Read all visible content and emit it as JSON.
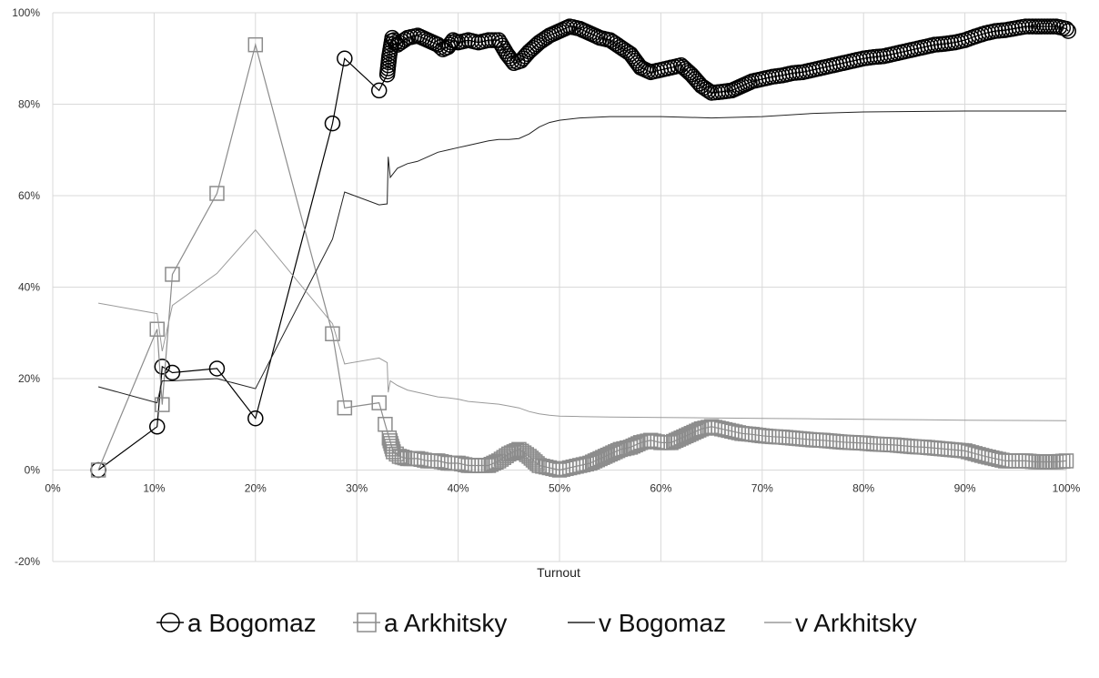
{
  "chart_data": {
    "type": "scatter",
    "title": "",
    "xlabel": "Turnout",
    "ylabel": "",
    "xlim": [
      0,
      100
    ],
    "ylim": [
      -20,
      100
    ],
    "x_ticks": [
      "0%",
      "10%",
      "20%",
      "30%",
      "40%",
      "50%",
      "60%",
      "70%",
      "80%",
      "90%",
      "100%"
    ],
    "y_ticks": [
      "-20%",
      "0%",
      "20%",
      "40%",
      "60%",
      "80%",
      "100%"
    ],
    "x_tick_values": [
      0,
      10,
      20,
      30,
      40,
      50,
      60,
      70,
      80,
      90,
      100
    ],
    "y_tick_values": [
      -20,
      0,
      20,
      40,
      60,
      80,
      100
    ],
    "grid": true,
    "legend_position": "bottom",
    "series": [
      {
        "name": "a Bogomaz",
        "marker": "circle",
        "line": true,
        "color": "#000000",
        "x": [
          4.5,
          10.3,
          10.8,
          11.8,
          16.2,
          20.0,
          27.6,
          28.8,
          32.2,
          33.0,
          33.2,
          33.5,
          34,
          35,
          36,
          37,
          38,
          38.5,
          39,
          39.5,
          40,
          41,
          42,
          43,
          44,
          44.8,
          45.5,
          46.2,
          47,
          48,
          49,
          50,
          51,
          52,
          53,
          54,
          55,
          56,
          57,
          58,
          59,
          60,
          61,
          62,
          63,
          64,
          65,
          66,
          67,
          68,
          69,
          70,
          71,
          72,
          73,
          74,
          75,
          76,
          77,
          78,
          79,
          80,
          81,
          82,
          83,
          84,
          85,
          86,
          87,
          88,
          89,
          90,
          91,
          92,
          93,
          94,
          95,
          96,
          97,
          99,
          100,
          100.2
        ],
        "y": [
          0,
          9.5,
          22.6,
          21.3,
          22.2,
          11.3,
          75.8,
          90.0,
          83.0,
          86.5,
          90.5,
          94.5,
          93,
          94.5,
          95,
          94,
          93,
          92,
          92.5,
          94,
          93.5,
          94,
          93.5,
          94,
          94,
          91,
          89,
          89.5,
          91.5,
          93.5,
          95,
          96,
          97,
          96.5,
          95.5,
          94.5,
          94,
          92.5,
          91,
          88,
          87,
          87.5,
          88,
          88.5,
          86.5,
          84,
          82.5,
          82.7,
          83,
          84,
          85,
          85.5,
          86,
          86.3,
          86.8,
          87,
          87.5,
          88,
          88.5,
          89,
          89.5,
          90,
          90.3,
          90.5,
          91,
          91.5,
          92,
          92.5,
          93,
          93.2,
          93.5,
          94,
          94.8,
          95.5,
          96,
          96.2,
          96.6,
          97,
          97,
          97,
          96.5,
          96
        ]
      },
      {
        "name": "a Arkhitsky",
        "marker": "square",
        "line": true,
        "color": "#8c8c8c",
        "x": [
          4.5,
          10.3,
          10.8,
          11.8,
          16.2,
          20.0,
          27.6,
          28.8,
          32.2,
          32.8,
          33.2,
          33.6,
          34.2,
          35,
          36,
          37,
          38,
          39,
          40,
          41,
          42,
          43,
          44,
          45,
          46,
          47,
          48,
          49,
          50,
          51,
          52,
          53,
          54,
          55,
          56,
          57,
          58,
          59,
          60,
          61,
          62,
          63,
          64,
          65,
          66,
          67,
          68,
          69,
          70,
          71,
          72,
          73,
          74,
          75,
          76,
          77,
          78,
          79,
          80,
          81,
          82,
          83,
          84,
          85,
          86,
          87,
          88,
          89,
          90,
          91,
          92,
          93,
          94,
          95,
          96,
          97,
          99,
          100
        ],
        "y": [
          0,
          30.8,
          14.3,
          42.8,
          60.5,
          93.0,
          29.8,
          13.6,
          14.7,
          10.0,
          7.0,
          4.0,
          3.0,
          2.5,
          2.5,
          2.0,
          2.0,
          1.5,
          1.5,
          1.0,
          1.0,
          1.0,
          2.0,
          3.5,
          4.5,
          3.0,
          1.0,
          0.5,
          0,
          0.5,
          1.0,
          1.5,
          2.5,
          3.5,
          4.5,
          5.0,
          6.0,
          6.5,
          6.0,
          6.0,
          7.0,
          8.0,
          9.0,
          9.5,
          9.0,
          8.5,
          8.0,
          7.8,
          7.5,
          7.3,
          7.2,
          7.0,
          6.8,
          6.6,
          6.5,
          6.3,
          6.1,
          6.0,
          5.9,
          5.7,
          5.6,
          5.5,
          5.3,
          5.1,
          5.0,
          4.8,
          4.6,
          4.4,
          4.2,
          3.6,
          3.0,
          2.5,
          2.0,
          2.0,
          2.0,
          1.8,
          1.8,
          2.0
        ]
      },
      {
        "name": "v Bogomaz",
        "marker": "none",
        "line": true,
        "color": "#222222",
        "x": [
          4.5,
          10.3,
          10.8,
          11.8,
          16.2,
          20.0,
          27.6,
          28.8,
          32.2,
          33.0,
          33.1,
          33.3,
          34,
          35,
          36,
          37,
          38,
          39,
          40,
          41,
          42,
          43,
          44,
          45,
          46,
          47,
          48,
          49,
          50,
          52,
          55,
          60,
          65,
          70,
          75,
          80,
          90,
          100
        ],
        "y": [
          18.2,
          14.7,
          19.5,
          19.5,
          20.0,
          17.8,
          50.5,
          60.8,
          58.0,
          58.2,
          68.5,
          64.0,
          66.0,
          67.0,
          67.5,
          68.5,
          69.5,
          70.0,
          70.5,
          71.0,
          71.5,
          72.0,
          72.3,
          72.3,
          72.5,
          73.5,
          75.0,
          76.0,
          76.5,
          77.0,
          77.3,
          77.3,
          77.0,
          77.3,
          78.0,
          78.3,
          78.5,
          78.5
        ]
      },
      {
        "name": "v Arkhitsky",
        "marker": "none",
        "line": true,
        "color": "#9a9a9a",
        "x": [
          4.5,
          10.3,
          10.8,
          11.8,
          16.2,
          20.0,
          27.6,
          28.8,
          32.2,
          33.0,
          33.1,
          33.3,
          34,
          35,
          36,
          37,
          38,
          39,
          40,
          41,
          42,
          43,
          44,
          45,
          46,
          47,
          48,
          49,
          50,
          52,
          55,
          60,
          65,
          70,
          75,
          80,
          90,
          100
        ],
        "y": [
          36.5,
          34.2,
          26.0,
          36.0,
          43.0,
          52.5,
          32.0,
          23.2,
          24.5,
          23.5,
          17.0,
          19.5,
          18.5,
          17.5,
          17.0,
          16.5,
          16.0,
          15.8,
          15.5,
          15.0,
          14.8,
          14.6,
          14.4,
          14.0,
          13.6,
          12.8,
          12.3,
          12.0,
          11.8,
          11.7,
          11.6,
          11.5,
          11.4,
          11.3,
          11.2,
          11.1,
          10.9,
          10.8
        ]
      }
    ]
  }
}
